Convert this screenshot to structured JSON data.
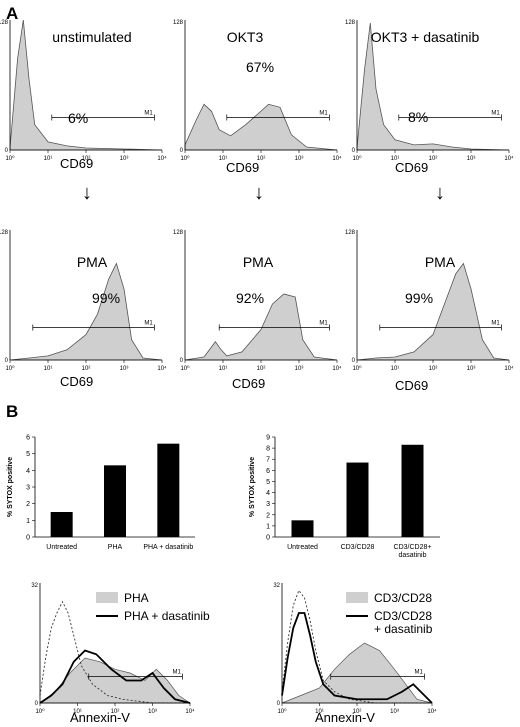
{
  "panel_a_letter": "A",
  "panel_b_letter": "B",
  "arrow_glyph": "↓",
  "colors": {
    "fill": "#cfcfcf",
    "stroke": "#555555",
    "bar": "#000000"
  },
  "chart_data": [
    {
      "id": "h1",
      "type": "area",
      "title": "unstimulated",
      "percent_label": "6%",
      "xlabel": "CD69",
      "gate_label": "M1",
      "y_ticks": [
        "128",
        "0"
      ],
      "x_ticks": [
        "10⁰",
        "10¹",
        "10²",
        "10³",
        "10⁴"
      ],
      "x": [
        0,
        0.2,
        0.35,
        0.5,
        0.65,
        1,
        1.5,
        2,
        3,
        4
      ],
      "y": [
        2,
        90,
        128,
        70,
        25,
        8,
        4,
        2,
        1,
        0
      ],
      "gate": [
        1.1,
        3.8
      ]
    },
    {
      "id": "h2",
      "type": "area",
      "title": "OKT3",
      "percent_label": "67%",
      "xlabel": "CD69",
      "gate_label": "M1",
      "y_ticks": [
        "128",
        "0"
      ],
      "x_ticks": [
        "10⁰",
        "10¹",
        "10²",
        "10³",
        "10⁴"
      ],
      "x": [
        0,
        0.3,
        0.5,
        0.7,
        0.9,
        1.2,
        1.6,
        1.9,
        2.2,
        2.5,
        2.8,
        3.2,
        4
      ],
      "y": [
        5,
        30,
        45,
        38,
        20,
        14,
        25,
        35,
        45,
        42,
        15,
        3,
        0
      ],
      "gate": [
        1.1,
        3.8
      ]
    },
    {
      "id": "h3",
      "type": "area",
      "title": "OKT3 + dasatinib",
      "percent_label": "8%",
      "xlabel": "CD69",
      "gate_label": "M1",
      "y_ticks": [
        "128",
        "0"
      ],
      "x_ticks": [
        "10⁰",
        "10¹",
        "10²",
        "10³",
        "10⁴"
      ],
      "x": [
        0,
        0.2,
        0.35,
        0.5,
        0.7,
        1,
        1.5,
        2,
        2.5,
        3,
        4
      ],
      "y": [
        2,
        80,
        125,
        60,
        25,
        10,
        5,
        6,
        3,
        1,
        0
      ],
      "gate": [
        1.1,
        3.8
      ]
    },
    {
      "id": "h4",
      "type": "area",
      "title": "PMA",
      "percent_label": "99%",
      "xlabel": "CD69",
      "gate_label": "M1",
      "y_ticks": [
        "128",
        "0"
      ],
      "x_ticks": [
        "10⁰",
        "10¹",
        "10²",
        "10³",
        "10⁴"
      ],
      "x": [
        0,
        0.5,
        1,
        1.5,
        2,
        2.3,
        2.6,
        2.8,
        3,
        3.2,
        3.5,
        4
      ],
      "y": [
        0,
        2,
        4,
        10,
        25,
        45,
        80,
        95,
        70,
        20,
        2,
        0
      ],
      "gate": [
        0.6,
        3.8
      ]
    },
    {
      "id": "h5",
      "type": "area",
      "title": "PMA",
      "percent_label": "92%",
      "xlabel": "CD69",
      "gate_label": "M1",
      "y_ticks": [
        "128",
        "0"
      ],
      "x_ticks": [
        "10⁰",
        "10¹",
        "10²",
        "10³",
        "10⁴"
      ],
      "x": [
        0,
        0.5,
        0.8,
        0.95,
        1.1,
        1.5,
        2,
        2.3,
        2.6,
        2.9,
        3.1,
        3.4,
        4
      ],
      "y": [
        0,
        3,
        18,
        10,
        4,
        8,
        30,
        55,
        65,
        62,
        20,
        3,
        0
      ],
      "gate": [
        0.9,
        3.8
      ]
    },
    {
      "id": "h6",
      "type": "area",
      "title": "PMA",
      "percent_label": "99%",
      "xlabel": "CD69",
      "gate_label": "M1",
      "y_ticks": [
        "128",
        "0"
      ],
      "x_ticks": [
        "10⁰",
        "10¹",
        "10²",
        "10³",
        "10⁴"
      ],
      "x": [
        0,
        0.5,
        1,
        1.5,
        2,
        2.3,
        2.6,
        2.8,
        3,
        3.3,
        3.6,
        4
      ],
      "y": [
        0,
        2,
        3,
        8,
        25,
        55,
        85,
        95,
        70,
        20,
        2,
        0
      ],
      "gate": [
        0.6,
        3.8
      ]
    },
    {
      "id": "bar1",
      "type": "bar",
      "ylabel": "% SYTOX positive",
      "categories": [
        "Untreated",
        "PHA",
        "PHA + dasatinib"
      ],
      "values": [
        1.5,
        4.3,
        5.6
      ],
      "ylim": [
        0,
        6
      ],
      "y_ticks": [
        "0",
        "1",
        "2",
        "3",
        "4",
        "5",
        "6"
      ]
    },
    {
      "id": "bar2",
      "type": "bar",
      "ylabel": "% SYTOX positive",
      "categories": [
        "Untreated",
        "CD3/CD28",
        "CD3/CD28+ dasatinib"
      ],
      "values": [
        1.5,
        6.7,
        8.3
      ],
      "ylim": [
        0,
        9
      ],
      "y_ticks": [
        "0",
        "1",
        "2",
        "3",
        "4",
        "5",
        "6",
        "7",
        "8",
        "9"
      ]
    },
    {
      "id": "ann1",
      "type": "area",
      "xlabel": "Annexin-V",
      "gate_label": "M1",
      "y_ticks": [
        "32",
        "0"
      ],
      "x_ticks": [
        "10⁰",
        "10¹",
        "10²",
        "10³",
        "10⁴"
      ],
      "legend": [
        "PHA",
        "PHA + dasatinib"
      ],
      "shaded": {
        "x": [
          0,
          0.4,
          0.8,
          1.2,
          1.6,
          2,
          2.4,
          2.8,
          3.1,
          3.4,
          3.7,
          4
        ],
        "y": [
          0,
          3,
          8,
          12,
          11,
          9,
          8,
          6,
          9,
          6,
          2,
          0
        ]
      },
      "black": {
        "x": [
          0,
          0.3,
          0.6,
          0.9,
          1.2,
          1.5,
          1.9,
          2.3,
          2.7,
          3,
          3.3,
          3.6,
          4
        ],
        "y": [
          0,
          2,
          5,
          11,
          14,
          13,
          9,
          6,
          6,
          8,
          4,
          1,
          0
        ]
      },
      "dashed": {
        "x": [
          0,
          0.15,
          0.3,
          0.45,
          0.6,
          0.75,
          0.9,
          1.1,
          1.4,
          1.8,
          2.2,
          3,
          4
        ],
        "y": [
          2,
          12,
          20,
          24,
          27,
          24,
          18,
          10,
          5,
          2,
          1,
          0,
          0
        ]
      },
      "gate": [
        1.3,
        3.8
      ]
    },
    {
      "id": "ann2",
      "type": "area",
      "xlabel": "Annexin-V",
      "gate_label": "M1",
      "y_ticks": [
        "32",
        "0"
      ],
      "x_ticks": [
        "10⁰",
        "10¹",
        "10²",
        "10³",
        "10⁴"
      ],
      "legend": [
        "CD3/CD28",
        "CD3/CD28\n+ dasatinib"
      ],
      "shaded": {
        "x": [
          0,
          0.5,
          1,
          1.4,
          1.8,
          2.2,
          2.6,
          3,
          3.3,
          3.6,
          4
        ],
        "y": [
          0,
          2,
          4,
          9,
          13,
          16,
          14,
          9,
          5,
          1,
          0
        ]
      },
      "black": {
        "x": [
          0,
          0.15,
          0.3,
          0.45,
          0.6,
          0.75,
          0.9,
          1.1,
          1.4,
          2,
          2.8,
          3.2,
          3.5,
          3.8,
          4
        ],
        "y": [
          2,
          12,
          20,
          24,
          24,
          18,
          11,
          5,
          2,
          1,
          1,
          3,
          5,
          2,
          0
        ]
      },
      "dashed": {
        "x": [
          0,
          0.15,
          0.3,
          0.45,
          0.6,
          0.75,
          0.9,
          1.1,
          1.4,
          1.8,
          2.5,
          4
        ],
        "y": [
          3,
          16,
          26,
          30,
          28,
          22,
          14,
          6,
          3,
          1,
          0,
          0
        ]
      },
      "gate": [
        1.3,
        3.8
      ]
    }
  ]
}
